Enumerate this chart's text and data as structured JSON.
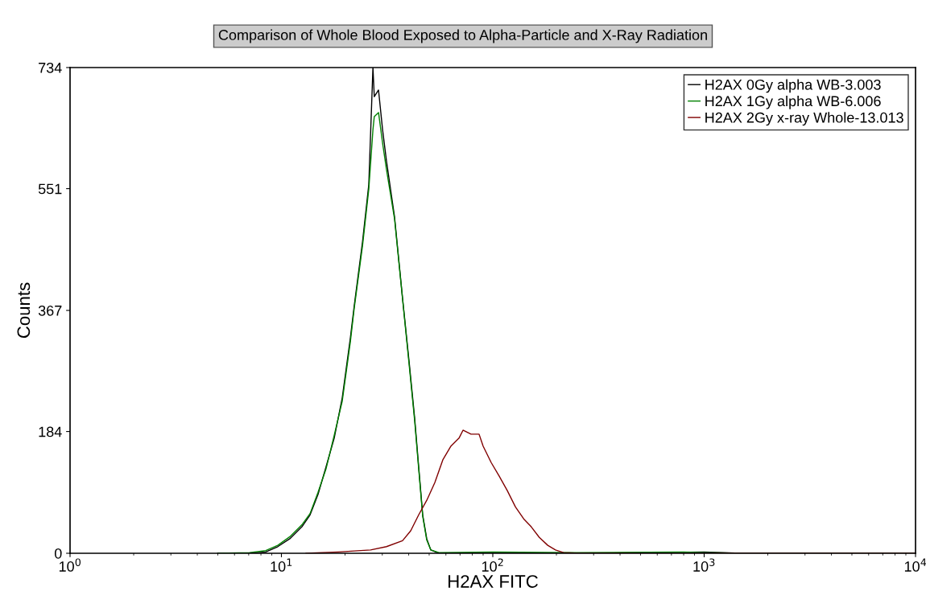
{
  "chart_data": {
    "type": "line",
    "title": "Comparison of Whole Blood Exposed to Alpha-Particle and X-Ray Radiation",
    "xlabel": "H2AX FITC",
    "ylabel": "Counts",
    "log": "x",
    "xlim": [
      1,
      10000
    ],
    "xticks": [
      {
        "value": 1,
        "label": "10$^{0}$"
      },
      {
        "value": 10,
        "label": "10$^{1}$"
      },
      {
        "value": 100,
        "label": "10$^{2}$"
      },
      {
        "value": 1000,
        "label": "10$^{3}$"
      },
      {
        "value": 10000,
        "label": "10$^{4}$"
      }
    ],
    "ylim": [
      0,
      734
    ],
    "yticks": [
      0,
      184,
      367,
      551,
      734
    ],
    "grid": false,
    "legend": "top right",
    "marker": "none",
    "line_style": "solid",
    "series": [
      {
        "name": "H2AX 0Gy alpha WB-3.003",
        "color": "#000000",
        "x": [
          5,
          7.07,
          8.43,
          9.61,
          10.96,
          12.5,
          13.66,
          14.9,
          16.27,
          17.77,
          19.4,
          21.2,
          22.1,
          24.2,
          25.9,
          27.1,
          27.5,
          28.8,
          30.1,
          31.4,
          34.3,
          37.4,
          40.2,
          42.7,
          44.6,
          46.6,
          48.7,
          50.9,
          55.6,
          100,
          300,
          1000,
          1500,
          10000
        ],
        "values": [
          0,
          0,
          2,
          10,
          22,
          40,
          58,
          89,
          131,
          174,
          235,
          326,
          374,
          471,
          557,
          734,
          690,
          700,
          640,
          593,
          508,
          386,
          289,
          204,
          131,
          58,
          22,
          5,
          0,
          0,
          0,
          2,
          0,
          0
        ]
      },
      {
        "name": "H2AX 1Gy alpha WB-6.006",
        "color": "#008000",
        "x": [
          5,
          7.07,
          8.43,
          9.61,
          10.96,
          12.5,
          13.66,
          14.9,
          16.27,
          17.77,
          19.4,
          21.2,
          22.1,
          24.2,
          25.9,
          27.1,
          27.5,
          28.8,
          30.1,
          31.4,
          34.3,
          37.4,
          40.2,
          42.7,
          44.6,
          46.6,
          48.7,
          50.9,
          55.6,
          100,
          250,
          800,
          1000,
          1500,
          10000
        ],
        "values": [
          0,
          1,
          4,
          12,
          25,
          43,
          60,
          92,
          128,
          178,
          230,
          320,
          370,
          465,
          550,
          640,
          660,
          666,
          620,
          580,
          505,
          385,
          285,
          200,
          128,
          56,
          20,
          5,
          1,
          2,
          1,
          2,
          1,
          0,
          0
        ]
      },
      {
        "name": "H2AX 2Gy x-ray Whole-13.013",
        "color": "#800000",
        "x": [
          13.07,
          18.56,
          26.4,
          31.4,
          37.4,
          40.9,
          44.6,
          48.7,
          53.2,
          58.0,
          63.4,
          69.2,
          72.3,
          78.9,
          86.1,
          90.0,
          98.3,
          107,
          117,
          128,
          140,
          152,
          166,
          182,
          198,
          216,
          258,
          10000
        ],
        "values": [
          0,
          2,
          5,
          10,
          19,
          34,
          58,
          80,
          107,
          141,
          162,
          174,
          186,
          180,
          180,
          162,
          137,
          117,
          95,
          70,
          52,
          40,
          24,
          12,
          5,
          1,
          0,
          0
        ]
      }
    ]
  }
}
